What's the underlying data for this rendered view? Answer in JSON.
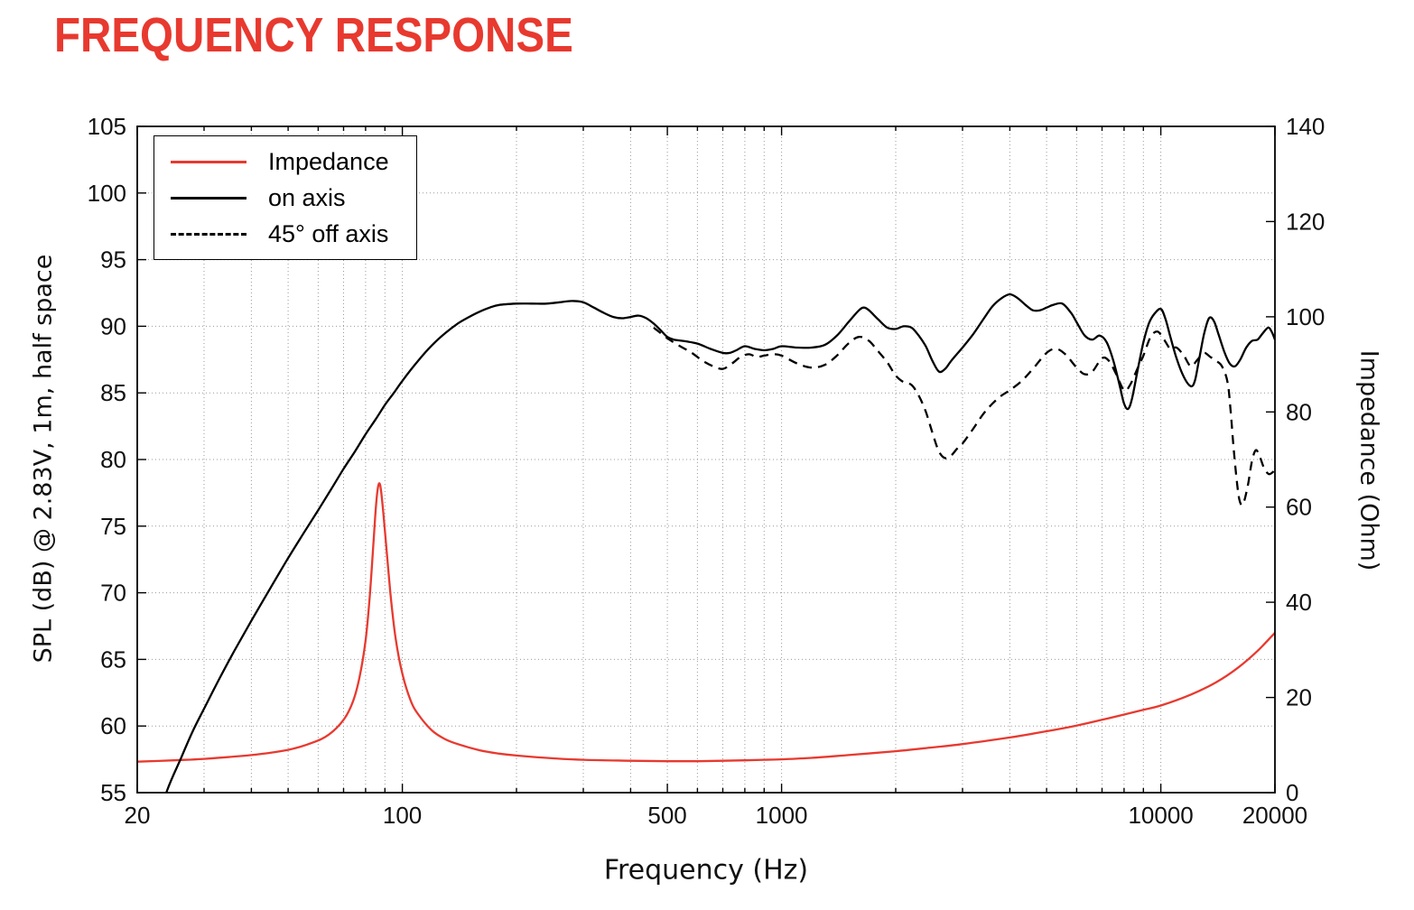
{
  "title": "FREQUENCY RESPONSE",
  "colors": {
    "title_red": "#e8392f",
    "impedance_red": "#e8392f",
    "line_black": "#000000",
    "grid_gray": "#999999"
  },
  "chart_data": {
    "type": "line",
    "x_scale": "log",
    "title": "FREQUENCY RESPONSE",
    "xlabel": "Frequency (Hz)",
    "ylabel_left": "SPL (dB) @ 2.83V, 1m, half space",
    "ylabel_right": "Impedance (Ohm)",
    "xlim": [
      20,
      20000
    ],
    "ylim_left": [
      55,
      105
    ],
    "ylim_right": [
      0,
      140
    ],
    "x_ticks_labeled": [
      20,
      100,
      500,
      1000,
      10000,
      20000
    ],
    "y_ticks_left": [
      55,
      60,
      65,
      70,
      75,
      80,
      85,
      90,
      95,
      100,
      105
    ],
    "y_ticks_right": [
      0,
      20,
      40,
      60,
      80,
      100,
      120,
      140
    ],
    "grid": "dotted",
    "legend_position": "top-left",
    "legend": [
      {
        "label": "Impedance",
        "style": "solid",
        "color": "#e8392f"
      },
      {
        "label": "on axis",
        "style": "solid",
        "color": "#000000"
      },
      {
        "label": "45° off axis",
        "style": "dashed",
        "color": "#000000"
      }
    ],
    "series": [
      {
        "name": "Impedance",
        "axis": "right",
        "unit": "Ohm",
        "color": "#e8392f",
        "style": "solid",
        "points": [
          [
            20,
            6.5
          ],
          [
            25,
            6.8
          ],
          [
            30,
            7.1
          ],
          [
            40,
            7.9
          ],
          [
            50,
            9.0
          ],
          [
            58,
            10.5
          ],
          [
            64,
            12.2
          ],
          [
            70,
            15.3
          ],
          [
            74,
            19.0
          ],
          [
            77,
            24.0
          ],
          [
            80,
            32.0
          ],
          [
            82,
            41.0
          ],
          [
            84,
            53.0
          ],
          [
            85,
            59.0
          ],
          [
            86,
            63.5
          ],
          [
            87,
            65.0
          ],
          [
            88,
            63.0
          ],
          [
            90,
            55.0
          ],
          [
            93,
            42.0
          ],
          [
            96,
            32.5
          ],
          [
            100,
            25.0
          ],
          [
            105,
            19.5
          ],
          [
            110,
            16.5
          ],
          [
            120,
            13.0
          ],
          [
            130,
            11.2
          ],
          [
            140,
            10.2
          ],
          [
            160,
            8.9
          ],
          [
            180,
            8.2
          ],
          [
            200,
            7.8
          ],
          [
            250,
            7.2
          ],
          [
            300,
            6.9
          ],
          [
            400,
            6.7
          ],
          [
            500,
            6.6
          ],
          [
            600,
            6.6
          ],
          [
            700,
            6.7
          ],
          [
            800,
            6.8
          ],
          [
            900,
            6.9
          ],
          [
            1000,
            7.0
          ],
          [
            1200,
            7.3
          ],
          [
            1500,
            7.9
          ],
          [
            2000,
            8.7
          ],
          [
            2500,
            9.5
          ],
          [
            3000,
            10.2
          ],
          [
            4000,
            11.6
          ],
          [
            5000,
            12.9
          ],
          [
            6000,
            14.1
          ],
          [
            7000,
            15.3
          ],
          [
            8000,
            16.4
          ],
          [
            9000,
            17.4
          ],
          [
            10000,
            18.3
          ],
          [
            12000,
            20.6
          ],
          [
            14000,
            23.2
          ],
          [
            16000,
            26.3
          ],
          [
            18000,
            29.8
          ],
          [
            20000,
            33.6
          ]
        ]
      },
      {
        "name": "on axis",
        "axis": "left",
        "unit": "dB",
        "color": "#000000",
        "style": "solid",
        "points": [
          [
            20,
            48.0
          ],
          [
            22,
            52.0
          ],
          [
            24,
            55.2
          ],
          [
            26,
            57.5
          ],
          [
            28,
            59.6
          ],
          [
            30,
            61.3
          ],
          [
            33,
            63.6
          ],
          [
            36,
            65.6
          ],
          [
            40,
            67.9
          ],
          [
            45,
            70.4
          ],
          [
            50,
            72.6
          ],
          [
            55,
            74.5
          ],
          [
            60,
            76.2
          ],
          [
            65,
            77.8
          ],
          [
            70,
            79.3
          ],
          [
            75,
            80.6
          ],
          [
            80,
            81.9
          ],
          [
            85,
            83.0
          ],
          [
            90,
            84.1
          ],
          [
            95,
            85.0
          ],
          [
            100,
            85.9
          ],
          [
            110,
            87.4
          ],
          [
            120,
            88.6
          ],
          [
            130,
            89.5
          ],
          [
            140,
            90.2
          ],
          [
            150,
            90.7
          ],
          [
            160,
            91.1
          ],
          [
            170,
            91.4
          ],
          [
            180,
            91.6
          ],
          [
            200,
            91.7
          ],
          [
            220,
            91.7
          ],
          [
            240,
            91.7
          ],
          [
            260,
            91.8
          ],
          [
            280,
            91.9
          ],
          [
            300,
            91.8
          ],
          [
            320,
            91.4
          ],
          [
            340,
            91.0
          ],
          [
            360,
            90.7
          ],
          [
            380,
            90.6
          ],
          [
            400,
            90.7
          ],
          [
            420,
            90.8
          ],
          [
            440,
            90.6
          ],
          [
            460,
            90.2
          ],
          [
            480,
            89.7
          ],
          [
            500,
            89.2
          ],
          [
            520,
            89.0
          ],
          [
            550,
            88.9
          ],
          [
            600,
            88.7
          ],
          [
            650,
            88.3
          ],
          [
            700,
            88.0
          ],
          [
            730,
            88.0
          ],
          [
            760,
            88.2
          ],
          [
            800,
            88.5
          ],
          [
            850,
            88.3
          ],
          [
            900,
            88.2
          ],
          [
            950,
            88.3
          ],
          [
            1000,
            88.5
          ],
          [
            1100,
            88.4
          ],
          [
            1200,
            88.4
          ],
          [
            1300,
            88.6
          ],
          [
            1400,
            89.3
          ],
          [
            1500,
            90.3
          ],
          [
            1600,
            91.2
          ],
          [
            1650,
            91.4
          ],
          [
            1700,
            91.2
          ],
          [
            1800,
            90.5
          ],
          [
            1900,
            89.9
          ],
          [
            2000,
            89.8
          ],
          [
            2100,
            90.0
          ],
          [
            2200,
            89.9
          ],
          [
            2300,
            89.3
          ],
          [
            2400,
            88.5
          ],
          [
            2500,
            87.4
          ],
          [
            2600,
            86.6
          ],
          [
            2700,
            86.8
          ],
          [
            2800,
            87.4
          ],
          [
            3000,
            88.4
          ],
          [
            3200,
            89.4
          ],
          [
            3400,
            90.5
          ],
          [
            3600,
            91.5
          ],
          [
            3800,
            92.1
          ],
          [
            4000,
            92.4
          ],
          [
            4200,
            92.1
          ],
          [
            4400,
            91.6
          ],
          [
            4600,
            91.2
          ],
          [
            4800,
            91.2
          ],
          [
            5000,
            91.4
          ],
          [
            5200,
            91.6
          ],
          [
            5500,
            91.7
          ],
          [
            5800,
            91.0
          ],
          [
            6000,
            90.3
          ],
          [
            6300,
            89.3
          ],
          [
            6600,
            89.0
          ],
          [
            6900,
            89.3
          ],
          [
            7200,
            88.8
          ],
          [
            7500,
            87.4
          ],
          [
            7800,
            85.5
          ],
          [
            8000,
            84.2
          ],
          [
            8200,
            83.8
          ],
          [
            8400,
            84.6
          ],
          [
            8700,
            86.8
          ],
          [
            9000,
            88.8
          ],
          [
            9300,
            90.2
          ],
          [
            9600,
            90.9
          ],
          [
            10000,
            91.3
          ],
          [
            10300,
            90.5
          ],
          [
            10600,
            89.2
          ],
          [
            11000,
            87.6
          ],
          [
            11500,
            86.2
          ],
          [
            12000,
            85.5
          ],
          [
            12300,
            85.9
          ],
          [
            12600,
            87.4
          ],
          [
            13000,
            89.4
          ],
          [
            13400,
            90.6
          ],
          [
            13800,
            90.4
          ],
          [
            14200,
            89.4
          ],
          [
            14700,
            88.1
          ],
          [
            15200,
            87.2
          ],
          [
            15700,
            87.0
          ],
          [
            16200,
            87.5
          ],
          [
            16800,
            88.4
          ],
          [
            17400,
            88.9
          ],
          [
            18000,
            89.0
          ],
          [
            18600,
            89.5
          ],
          [
            19200,
            89.9
          ],
          [
            19600,
            89.6
          ],
          [
            20000,
            89.0
          ]
        ]
      },
      {
        "name": "45° off axis",
        "axis": "left",
        "unit": "dB",
        "color": "#000000",
        "style": "dashed",
        "points": [
          [
            460,
            89.9
          ],
          [
            500,
            89.1
          ],
          [
            540,
            88.5
          ],
          [
            580,
            88.0
          ],
          [
            620,
            87.4
          ],
          [
            660,
            87.0
          ],
          [
            700,
            86.8
          ],
          [
            740,
            87.2
          ],
          [
            780,
            87.7
          ],
          [
            820,
            87.9
          ],
          [
            860,
            87.7
          ],
          [
            900,
            87.8
          ],
          [
            950,
            87.9
          ],
          [
            1000,
            87.8
          ],
          [
            1100,
            87.2
          ],
          [
            1200,
            86.9
          ],
          [
            1300,
            87.1
          ],
          [
            1400,
            87.8
          ],
          [
            1500,
            88.7
          ],
          [
            1600,
            89.2
          ],
          [
            1700,
            88.9
          ],
          [
            1800,
            88.1
          ],
          [
            1900,
            87.3
          ],
          [
            2000,
            86.3
          ],
          [
            2100,
            85.8
          ],
          [
            2200,
            85.6
          ],
          [
            2300,
            84.8
          ],
          [
            2400,
            83.6
          ],
          [
            2500,
            82.0
          ],
          [
            2600,
            80.6
          ],
          [
            2700,
            80.1
          ],
          [
            2800,
            80.3
          ],
          [
            2900,
            80.8
          ],
          [
            3000,
            81.2
          ],
          [
            3200,
            82.3
          ],
          [
            3400,
            83.4
          ],
          [
            3600,
            84.2
          ],
          [
            3800,
            84.8
          ],
          [
            4000,
            85.2
          ],
          [
            4300,
            85.9
          ],
          [
            4600,
            86.8
          ],
          [
            5000,
            88.0
          ],
          [
            5300,
            88.3
          ],
          [
            5600,
            87.9
          ],
          [
            6000,
            86.9
          ],
          [
            6300,
            86.4
          ],
          [
            6600,
            86.6
          ],
          [
            7000,
            87.6
          ],
          [
            7300,
            87.4
          ],
          [
            7600,
            86.5
          ],
          [
            8000,
            85.2
          ],
          [
            8300,
            85.6
          ],
          [
            8700,
            86.9
          ],
          [
            9000,
            87.8
          ],
          [
            9400,
            89.2
          ],
          [
            9800,
            89.6
          ],
          [
            10200,
            89.0
          ],
          [
            10600,
            88.3
          ],
          [
            11000,
            88.4
          ],
          [
            11500,
            87.8
          ],
          [
            12000,
            87.0
          ],
          [
            12500,
            87.5
          ],
          [
            13000,
            88.0
          ],
          [
            13500,
            87.7
          ],
          [
            14000,
            87.4
          ],
          [
            14500,
            87.0
          ],
          [
            15000,
            85.8
          ],
          [
            15300,
            83.5
          ],
          [
            15600,
            80.5
          ],
          [
            16000,
            77.5
          ],
          [
            16300,
            76.6
          ],
          [
            16600,
            76.9
          ],
          [
            17000,
            78.2
          ],
          [
            17400,
            79.9
          ],
          [
            17800,
            80.7
          ],
          [
            18200,
            80.3
          ],
          [
            18700,
            79.4
          ],
          [
            19300,
            78.9
          ],
          [
            20000,
            79.2
          ]
        ]
      }
    ]
  }
}
